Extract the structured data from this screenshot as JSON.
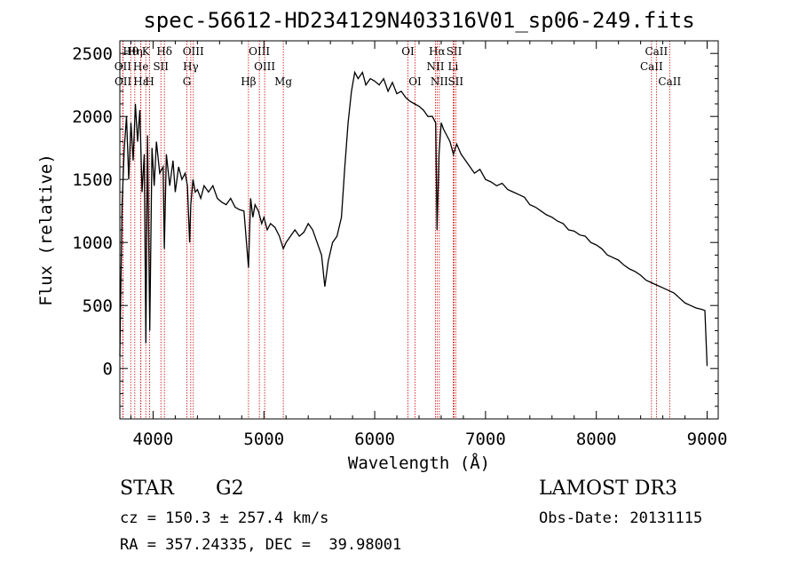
{
  "chart_data": {
    "type": "line",
    "title": "spec-56612-HD234129N403316V01_sp06-249.fits",
    "xlabel": "Wavelength (Å)",
    "ylabel": "Flux (relative)",
    "xlim": [
      3700,
      9100
    ],
    "ylim": [
      -400,
      2600
    ],
    "xticks": [
      4000,
      5000,
      6000,
      7000,
      8000,
      9000
    ],
    "yticks": [
      0,
      500,
      1000,
      1500,
      2000,
      2500
    ],
    "series": [
      {
        "x": [
          3700,
          3720,
          3740,
          3760,
          3780,
          3800,
          3820,
          3840,
          3860,
          3880,
          3900,
          3920,
          3935,
          3950,
          3970,
          3990,
          4010,
          4030,
          4060,
          4090,
          4101,
          4120,
          4150,
          4180,
          4200,
          4230,
          4260,
          4290,
          4310,
          4330,
          4340,
          4360,
          4380,
          4400,
          4430,
          4460,
          4500,
          4540,
          4580,
          4620,
          4660,
          4700,
          4740,
          4780,
          4820,
          4861,
          4880,
          4900,
          4920,
          4950,
          4980,
          5000,
          5030,
          5060,
          5100,
          5140,
          5175,
          5200,
          5240,
          5280,
          5320,
          5360,
          5400,
          5440,
          5480,
          5520,
          5550,
          5580,
          5620,
          5660,
          5700,
          5730,
          5760,
          5790,
          5820,
          5850,
          5890,
          5920,
          5960,
          6000,
          6040,
          6080,
          6120,
          6160,
          6200,
          6240,
          6280,
          6320,
          6360,
          6400,
          6440,
          6480,
          6520,
          6550,
          6563,
          6580,
          6600,
          6620,
          6650,
          6680,
          6710,
          6740,
          6780,
          6820,
          6860,
          6900,
          6950,
          7000,
          7050,
          7100,
          7150,
          7200,
          7250,
          7300,
          7350,
          7400,
          7450,
          7500,
          7550,
          7600,
          7650,
          7700,
          7750,
          7800,
          7850,
          7900,
          7950,
          8000,
          8050,
          8100,
          8150,
          8200,
          8250,
          8300,
          8350,
          8400,
          8450,
          8500,
          8550,
          8600,
          8650,
          8700,
          8750,
          8800,
          8850,
          8900,
          8950,
          8980,
          9000
        ],
        "values": [
          100,
          1300,
          1750,
          2000,
          1500,
          1950,
          1650,
          2100,
          1800,
          2050,
          1400,
          1700,
          200,
          1850,
          300,
          1750,
          1450,
          1800,
          1550,
          1600,
          950,
          1700,
          1450,
          1650,
          1400,
          1600,
          1500,
          1550,
          1450,
          1000,
          1300,
          1500,
          1400,
          1420,
          1350,
          1450,
          1400,
          1450,
          1350,
          1320,
          1300,
          1350,
          1280,
          1260,
          1250,
          800,
          1350,
          1200,
          1300,
          1250,
          1150,
          1200,
          1100,
          1150,
          1120,
          1050,
          950,
          1000,
          1050,
          1100,
          1050,
          1080,
          1150,
          1100,
          1000,
          900,
          650,
          850,
          1000,
          1050,
          1200,
          1600,
          1950,
          2200,
          2350,
          2300,
          2350,
          2250,
          2300,
          2280,
          2250,
          2300,
          2200,
          2270,
          2180,
          2200,
          2150,
          2120,
          2100,
          2080,
          2050,
          2000,
          2000,
          1950,
          1100,
          1700,
          1950,
          1900,
          1850,
          1800,
          1700,
          1780,
          1700,
          1650,
          1600,
          1550,
          1580,
          1500,
          1480,
          1450,
          1470,
          1420,
          1400,
          1380,
          1360,
          1300,
          1280,
          1250,
          1220,
          1200,
          1170,
          1150,
          1100,
          1090,
          1060,
          1050,
          1000,
          980,
          950,
          900,
          880,
          860,
          820,
          790,
          770,
          740,
          700,
          680,
          660,
          640,
          620,
          600,
          560,
          520,
          500,
          480,
          470,
          460,
          20
        ]
      }
    ],
    "line_markers": [
      {
        "label": "Hθ",
        "x": 3798,
        "row": 1
      },
      {
        "label": "OII",
        "x": 3727,
        "row": 2
      },
      {
        "label": "OII",
        "x": 3729,
        "row": 3
      },
      {
        "label": "Hη",
        "x": 3835,
        "row": 1
      },
      {
        "label": "He",
        "x": 3890,
        "row": 2
      },
      {
        "label": "Hε",
        "x": 3889,
        "row": 3
      },
      {
        "label": "K",
        "x": 3934,
        "row": 1
      },
      {
        "label": "SII",
        "x": 4070,
        "row": 2
      },
      {
        "label": "H",
        "x": 3969,
        "row": 3
      },
      {
        "label": "Hδ",
        "x": 4102,
        "row": 1
      },
      {
        "label": "OIII",
        "x": 4363,
        "row": 1
      },
      {
        "label": "Hγ",
        "x": 4340,
        "row": 2
      },
      {
        "label": "G",
        "x": 4305,
        "row": 3
      },
      {
        "label": "Hβ",
        "x": 4861,
        "row": 3
      },
      {
        "label": "OIII",
        "x": 4959,
        "row": 1
      },
      {
        "label": "OIII",
        "x": 5007,
        "row": 2
      },
      {
        "label": "Mg",
        "x": 5175,
        "row": 3
      },
      {
        "label": "OI",
        "x": 6300,
        "row": 1
      },
      {
        "label": "OI",
        "x": 6364,
        "row": 3
      },
      {
        "label": "Hα",
        "x": 6563,
        "row": 1
      },
      {
        "label": "NII",
        "x": 6548,
        "row": 2
      },
      {
        "label": "NII",
        "x": 6583,
        "row": 3
      },
      {
        "label": "SII",
        "x": 6717,
        "row": 1
      },
      {
        "label": "Li",
        "x": 6708,
        "row": 2
      },
      {
        "label": "SII",
        "x": 6731,
        "row": 3
      },
      {
        "label": "CaII",
        "x": 8498,
        "row": 2
      },
      {
        "label": "CaII",
        "x": 8542,
        "row": 1
      },
      {
        "label": "CaII",
        "x": 8662,
        "row": 3
      }
    ],
    "marker_color": "#cc0000"
  },
  "info": {
    "class_label": "STAR",
    "subclass": "G2",
    "survey": "LAMOST DR3",
    "cz": "cz = 150.3 ± 257.4 km/s",
    "obs_date": "Obs-Date: 20131115",
    "coords": "RA = 357.24335, DEC =  39.98001"
  }
}
